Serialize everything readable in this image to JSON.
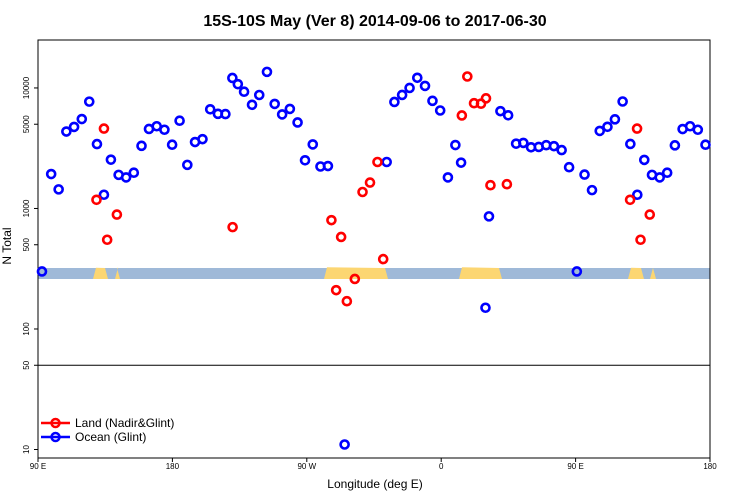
{
  "chart_data": {
    "type": "scatter",
    "title": "15S-10S May (Ver 8)   2014-09-06 to 2017-06-30",
    "xlabel": "Longitude (deg E)",
    "ylabel": "N Total",
    "x_scale": "linear",
    "y_scale": "log",
    "xlim": [
      90,
      360
    ],
    "ylim": [
      8.5,
      25000
    ],
    "x_ticks": [
      {
        "value": 90,
        "label": "90 E"
      },
      {
        "value": 144,
        "label": "180"
      },
      {
        "value": 198,
        "label": "90 W"
      },
      {
        "value": 252,
        "label": "0"
      },
      {
        "value": 306,
        "label": "90 E"
      },
      {
        "value": 360,
        "label": "180"
      }
    ],
    "y_ticks": [
      {
        "value": 10,
        "label": "10"
      },
      {
        "value": 50,
        "label": "50"
      },
      {
        "value": 100,
        "label": "100"
      },
      {
        "value": 500,
        "label": "500"
      },
      {
        "value": 1000,
        "label": "1000"
      },
      {
        "value": 5000,
        "label": "5000"
      },
      {
        "value": 10000,
        "label": "10000"
      }
    ],
    "reference_line": {
      "value": 50
    },
    "legend": {
      "position": "bottom-left"
    },
    "series": [
      {
        "name": "Land (Nadir&Glint)",
        "color": "#ff0000",
        "points": [
          {
            "x": 113.5,
            "y": 1180
          },
          {
            "x": 116.5,
            "y": 4600
          },
          {
            "x": 117.8,
            "y": 550
          },
          {
            "x": 121.7,
            "y": 890
          },
          {
            "x": 168.2,
            "y": 700
          },
          {
            "x": 207.9,
            "y": 800
          },
          {
            "x": 209.8,
            "y": 210
          },
          {
            "x": 211.8,
            "y": 580
          },
          {
            "x": 214.1,
            "y": 170
          },
          {
            "x": 217.3,
            "y": 260
          },
          {
            "x": 220.4,
            "y": 1370
          },
          {
            "x": 223.4,
            "y": 1640
          },
          {
            "x": 226.4,
            "y": 2430
          },
          {
            "x": 228.7,
            "y": 380
          },
          {
            "x": 260.3,
            "y": 5910
          },
          {
            "x": 262.5,
            "y": 12450
          },
          {
            "x": 265.2,
            "y": 7470
          },
          {
            "x": 268.0,
            "y": 7400
          },
          {
            "x": 270.0,
            "y": 8200
          },
          {
            "x": 271.8,
            "y": 1560
          },
          {
            "x": 278.4,
            "y": 1590
          },
          {
            "x": 327.9,
            "y": 1180
          },
          {
            "x": 330.7,
            "y": 4600
          },
          {
            "x": 332.1,
            "y": 550
          },
          {
            "x": 335.8,
            "y": 890
          }
        ]
      },
      {
        "name": "Ocean (Glint)",
        "color": "#0000ff",
        "points": [
          {
            "x": 91.6,
            "y": 300
          },
          {
            "x": 95.3,
            "y": 1930
          },
          {
            "x": 98.3,
            "y": 1440
          },
          {
            "x": 101.4,
            "y": 4350
          },
          {
            "x": 104.5,
            "y": 4750
          },
          {
            "x": 107.6,
            "y": 5520
          },
          {
            "x": 110.6,
            "y": 7700
          },
          {
            "x": 113.7,
            "y": 3420
          },
          {
            "x": 116.5,
            "y": 1300
          },
          {
            "x": 119.3,
            "y": 2540
          },
          {
            "x": 122.4,
            "y": 1900
          },
          {
            "x": 125.4,
            "y": 1810
          },
          {
            "x": 128.5,
            "y": 1980
          },
          {
            "x": 131.6,
            "y": 3310
          },
          {
            "x": 134.6,
            "y": 4570
          },
          {
            "x": 137.7,
            "y": 4810
          },
          {
            "x": 140.8,
            "y": 4500
          },
          {
            "x": 143.9,
            "y": 3380
          },
          {
            "x": 146.9,
            "y": 5350
          },
          {
            "x": 150.0,
            "y": 2300
          },
          {
            "x": 153.1,
            "y": 3560
          },
          {
            "x": 156.1,
            "y": 3760
          },
          {
            "x": 159.2,
            "y": 6650
          },
          {
            "x": 162.3,
            "y": 6100
          },
          {
            "x": 165.3,
            "y": 6070
          },
          {
            "x": 168.1,
            "y": 12100
          },
          {
            "x": 170.3,
            "y": 10750
          },
          {
            "x": 172.8,
            "y": 9310
          },
          {
            "x": 176.0,
            "y": 7250
          },
          {
            "x": 178.9,
            "y": 8740
          },
          {
            "x": 182.0,
            "y": 13600
          },
          {
            "x": 185.1,
            "y": 7370
          },
          {
            "x": 188.1,
            "y": 6030
          },
          {
            "x": 191.2,
            "y": 6700
          },
          {
            "x": 194.3,
            "y": 5170
          },
          {
            "x": 197.3,
            "y": 2510
          },
          {
            "x": 200.4,
            "y": 3400
          },
          {
            "x": 203.5,
            "y": 2230
          },
          {
            "x": 206.5,
            "y": 2250
          },
          {
            "x": 213.2,
            "y": 11
          },
          {
            "x": 230.1,
            "y": 2430
          },
          {
            "x": 233.2,
            "y": 7650
          },
          {
            "x": 236.3,
            "y": 8750
          },
          {
            "x": 239.3,
            "y": 10000
          },
          {
            "x": 242.4,
            "y": 12150
          },
          {
            "x": 245.5,
            "y": 10400
          },
          {
            "x": 248.5,
            "y": 7820
          },
          {
            "x": 251.6,
            "y": 6500
          },
          {
            "x": 254.7,
            "y": 1810
          },
          {
            "x": 257.7,
            "y": 3360
          },
          {
            "x": 260.0,
            "y": 2400
          },
          {
            "x": 269.8,
            "y": 150
          },
          {
            "x": 271.2,
            "y": 860
          },
          {
            "x": 275.8,
            "y": 6420
          },
          {
            "x": 278.9,
            "y": 5930
          },
          {
            "x": 282.1,
            "y": 3450
          },
          {
            "x": 285.0,
            "y": 3500
          },
          {
            "x": 288.1,
            "y": 3220
          },
          {
            "x": 291.2,
            "y": 3240
          },
          {
            "x": 294.2,
            "y": 3350
          },
          {
            "x": 297.3,
            "y": 3290
          },
          {
            "x": 300.4,
            "y": 3050
          },
          {
            "x": 303.4,
            "y": 2200
          },
          {
            "x": 306.5,
            "y": 300
          },
          {
            "x": 309.6,
            "y": 1910
          },
          {
            "x": 312.6,
            "y": 1420
          },
          {
            "x": 315.7,
            "y": 4400
          },
          {
            "x": 318.8,
            "y": 4760
          },
          {
            "x": 321.8,
            "y": 5490
          },
          {
            "x": 324.9,
            "y": 7720
          },
          {
            "x": 328.0,
            "y": 3430
          },
          {
            "x": 330.8,
            "y": 1300
          },
          {
            "x": 333.6,
            "y": 2530
          },
          {
            "x": 336.7,
            "y": 1900
          },
          {
            "x": 339.8,
            "y": 1810
          },
          {
            "x": 342.8,
            "y": 1980
          },
          {
            "x": 345.9,
            "y": 3340
          },
          {
            "x": 349.0,
            "y": 4560
          },
          {
            "x": 352.0,
            "y": 4810
          },
          {
            "x": 355.1,
            "y": 4500
          },
          {
            "x": 358.2,
            "y": 3380
          }
        ]
      }
    ]
  }
}
